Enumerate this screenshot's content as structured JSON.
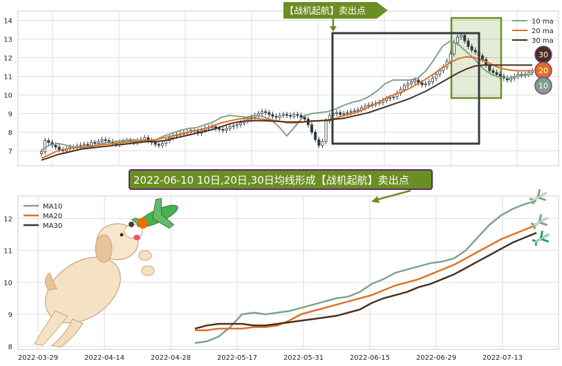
{
  "chart_data": [
    {
      "type": "candlestick",
      "title": "",
      "xlabel": "",
      "ylabel": "",
      "ylim": [
        6.2,
        14.5
      ],
      "yticks": [
        7,
        8,
        9,
        10,
        11,
        12,
        13,
        14
      ],
      "grid": true,
      "legend": {
        "placement": "top-right",
        "entries": [
          {
            "label": "10 ma",
            "color": "#7da387"
          },
          {
            "label": "20 ma",
            "color": "#e07020"
          },
          {
            "label": "30 ma",
            "color": "#4a2e1c"
          }
        ]
      },
      "ma_badges": [
        "30",
        "20",
        "10"
      ],
      "annotation": "【战机起航】卖出点",
      "candles_close": [
        6.95,
        7.55,
        7.45,
        7.3,
        7.2,
        7.05,
        7.0,
        7.1,
        7.2,
        7.15,
        7.25,
        7.3,
        7.35,
        7.3,
        7.45,
        7.4,
        7.5,
        7.6,
        7.55,
        7.5,
        7.4,
        7.35,
        7.45,
        7.5,
        7.55,
        7.5,
        7.45,
        7.55,
        7.6,
        7.7,
        7.55,
        7.45,
        7.35,
        7.3,
        7.4,
        7.55,
        7.7,
        7.8,
        7.85,
        7.9,
        7.95,
        8.0,
        8.1,
        8.05,
        7.95,
        8.1,
        8.2,
        8.25,
        8.3,
        8.2,
        8.15,
        8.1,
        8.2,
        8.3,
        8.35,
        8.4,
        8.5,
        8.6,
        8.7,
        8.8,
        8.9,
        9.0,
        9.1,
        9.05,
        8.95,
        8.85,
        8.8,
        8.9,
        8.95,
        8.9,
        8.85,
        8.95,
        8.9,
        8.8,
        8.7,
        8.4,
        8.0,
        7.6,
        7.3,
        7.5,
        8.6,
        8.9,
        9.0,
        9.05,
        8.95,
        9.0,
        9.05,
        9.1,
        9.15,
        9.2,
        9.3,
        9.4,
        9.45,
        9.5,
        9.55,
        9.6,
        9.7,
        9.8,
        9.85,
        9.9,
        10.1,
        10.3,
        10.5,
        10.6,
        10.7,
        10.8,
        10.65,
        10.55,
        10.6,
        10.7,
        10.9,
        11.1,
        11.3,
        11.5,
        11.8,
        12.2,
        12.8,
        13.1,
        13.2,
        12.9,
        12.6,
        12.4,
        12.3,
        12.1,
        11.9,
        11.6,
        11.3,
        11.2,
        11.1,
        11.0,
        10.9,
        10.8,
        10.9,
        11.0,
        11.1,
        11.05,
        11.1,
        11.2,
        11.3
      ],
      "series": [
        {
          "name": "10 ma",
          "color": "#7da387",
          "values": [
            7.05,
            7.3,
            7.4,
            7.3,
            7.2,
            7.15,
            7.2,
            7.35,
            7.45,
            7.5,
            7.55,
            7.6,
            7.55,
            7.5,
            7.6,
            7.8,
            7.95,
            8.1,
            8.2,
            8.25,
            8.4,
            8.55,
            8.8,
            8.9,
            8.85,
            8.8,
            8.9,
            8.85,
            8.7,
            8.3,
            7.8,
            8.3,
            8.85,
            9.0,
            9.05,
            9.1,
            9.25,
            9.45,
            9.6,
            9.7,
            9.9,
            10.2,
            10.6,
            10.8,
            10.8,
            10.8,
            10.9,
            11.3,
            11.9,
            12.6,
            12.9,
            12.7,
            12.3,
            11.9,
            11.4,
            11.1,
            10.95,
            10.9,
            11.0,
            11.05,
            11.1
          ]
        },
        {
          "name": "20 ma",
          "color": "#e07020",
          "values": [
            6.6,
            6.8,
            7.0,
            7.1,
            7.15,
            7.2,
            7.25,
            7.3,
            7.35,
            7.4,
            7.45,
            7.5,
            7.5,
            7.55,
            7.6,
            7.7,
            7.8,
            7.9,
            8.0,
            8.1,
            8.2,
            8.35,
            8.5,
            8.6,
            8.7,
            8.75,
            8.75,
            8.7,
            8.65,
            8.6,
            8.5,
            8.5,
            8.55,
            8.6,
            8.6,
            8.65,
            8.75,
            8.9,
            9.0,
            9.15,
            9.35,
            9.55,
            9.8,
            10.0,
            10.15,
            10.35,
            10.6,
            10.85,
            11.15,
            11.45,
            11.75,
            11.95,
            12.05,
            12.0,
            11.85,
            11.65,
            11.45,
            11.35,
            11.3,
            11.3,
            11.3
          ]
        },
        {
          "name": "30 ma",
          "color": "#4a2e1c",
          "values": [
            6.5,
            6.65,
            6.8,
            6.9,
            7.0,
            7.1,
            7.15,
            7.2,
            7.25,
            7.3,
            7.35,
            7.4,
            7.45,
            7.5,
            7.5,
            7.55,
            7.65,
            7.75,
            7.85,
            7.95,
            8.05,
            8.15,
            8.3,
            8.45,
            8.55,
            8.6,
            8.62,
            8.62,
            8.6,
            8.58,
            8.55,
            8.55,
            8.55,
            8.6,
            8.62,
            8.65,
            8.7,
            8.75,
            8.85,
            8.95,
            9.05,
            9.2,
            9.35,
            9.5,
            9.65,
            9.8,
            10.0,
            10.2,
            10.45,
            10.7,
            10.95,
            11.2,
            11.4,
            11.55,
            11.6,
            11.6,
            11.6,
            11.6,
            11.6,
            11.6,
            11.6
          ]
        }
      ]
    },
    {
      "type": "line",
      "title": "",
      "xlabel": "",
      "ylabel": "",
      "ylim": [
        7.9,
        12.7
      ],
      "yticks": [
        8,
        9,
        10,
        11,
        12
      ],
      "xticks": [
        "2022-03-29",
        "2022-04-14",
        "2022-04-28",
        "2022-05-17",
        "2022-05-31",
        "2022-06-15",
        "2022-06-29",
        "2022-07-13"
      ],
      "grid": true,
      "legend": {
        "placement": "top-left",
        "entries": [
          {
            "label": "MA10",
            "color": "#7da387"
          },
          {
            "label": "MA20",
            "color": "#e07020"
          },
          {
            "label": "MA30",
            "color": "#4a2e1c"
          }
        ]
      },
      "annotation": "2022-06-10 10日,20日,30日均线形成【战机起航】卖出点",
      "series": [
        {
          "name": "MA10",
          "color": "#7da387",
          "values": [
            8.1,
            8.15,
            8.3,
            8.6,
            9.0,
            9.05,
            9.0,
            9.05,
            9.1,
            9.2,
            9.3,
            9.4,
            9.5,
            9.55,
            9.7,
            9.95,
            10.1,
            10.3,
            10.4,
            10.5,
            10.6,
            10.65,
            10.75,
            11.0,
            11.4,
            11.8,
            12.1,
            12.3,
            12.45,
            12.55
          ]
        },
        {
          "name": "MA20",
          "color": "#e07020",
          "values": [
            8.5,
            8.5,
            8.55,
            8.55,
            8.55,
            8.6,
            8.6,
            8.65,
            8.8,
            9.0,
            9.1,
            9.2,
            9.3,
            9.4,
            9.5,
            9.6,
            9.75,
            9.9,
            10.0,
            10.1,
            10.25,
            10.4,
            10.55,
            10.75,
            10.95,
            11.15,
            11.35,
            11.5,
            11.65,
            11.8
          ]
        },
        {
          "name": "MA30",
          "color": "#4a2e1c",
          "values": [
            8.55,
            8.65,
            8.7,
            8.7,
            8.7,
            8.65,
            8.65,
            8.7,
            8.75,
            8.8,
            8.85,
            8.9,
            8.95,
            9.05,
            9.15,
            9.35,
            9.5,
            9.6,
            9.7,
            9.85,
            9.95,
            10.1,
            10.25,
            10.45,
            10.65,
            10.85,
            11.05,
            11.25,
            11.4,
            11.55
          ]
        }
      ]
    }
  ]
}
